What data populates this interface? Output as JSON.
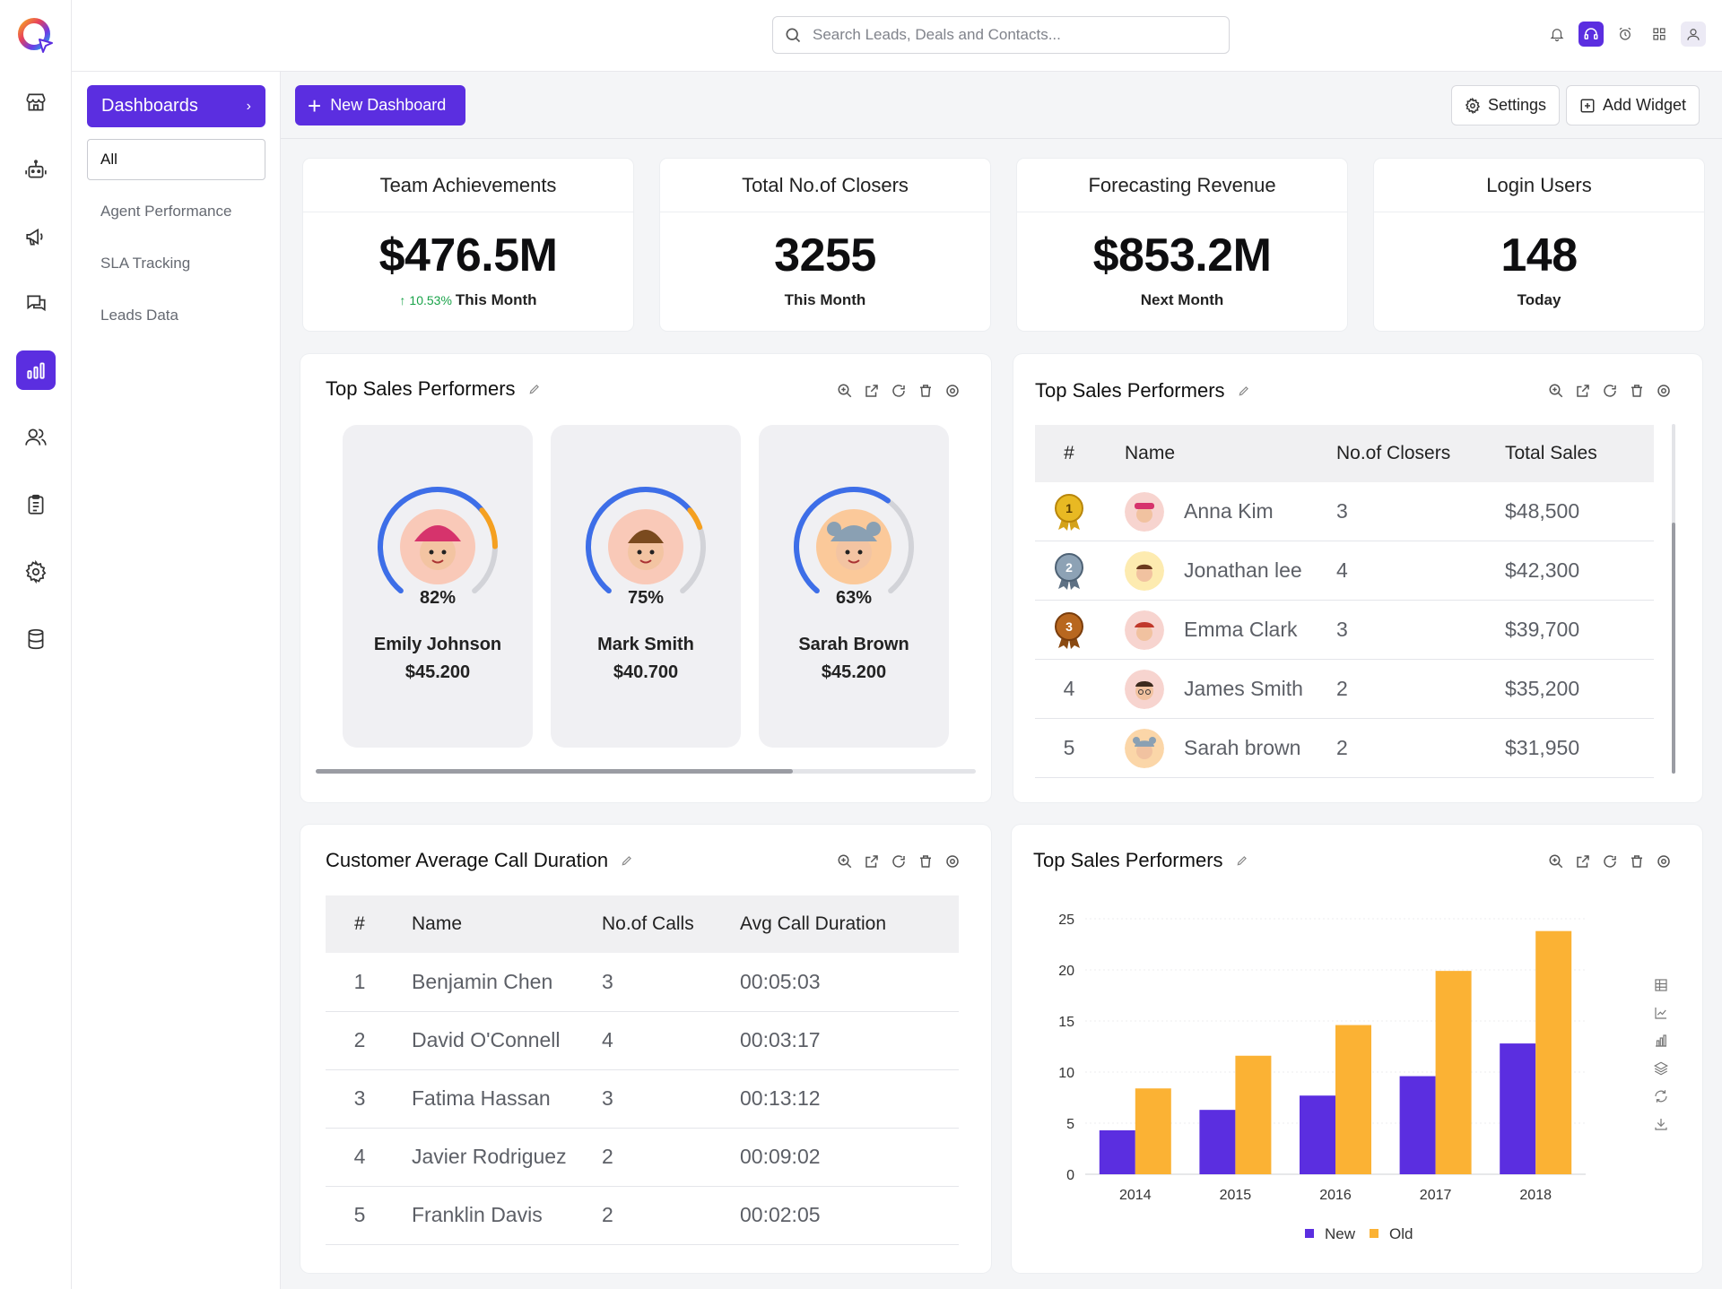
{
  "header": {
    "search_placeholder": "Search Leads, Deals and Contacts..."
  },
  "sidebar": {
    "dashboards_label": "Dashboards",
    "items": [
      "All",
      "Agent Performance",
      "SLA Tracking",
      "Leads Data"
    ]
  },
  "toolbar": {
    "new_dashboard": "New Dashboard",
    "settings": "Settings",
    "add_widget": "Add Widget"
  },
  "kpis": [
    {
      "title": "Team Achievements",
      "value": "$476.5M",
      "change": "10.53%",
      "subtitle": "This Month"
    },
    {
      "title": "Total No.of Closers",
      "value": "3255",
      "subtitle": "This Month"
    },
    {
      "title": "Forecasting Revenue",
      "value": "$853.2M",
      "subtitle": "Next Month"
    },
    {
      "title": "Login Users",
      "value": "148",
      "subtitle": "Today"
    }
  ],
  "performers_widget": {
    "title": "Top Sales Performers",
    "cards": [
      {
        "percent": 82,
        "percent_label": "82%",
        "name": "Emily Johnson",
        "amount": "$45.200"
      },
      {
        "percent": 75,
        "percent_label": "75%",
        "name": "Mark Smith",
        "amount": "$40.700"
      },
      {
        "percent": 63,
        "percent_label": "63%",
        "name": "Sarah Brown",
        "amount": "$45.200"
      }
    ]
  },
  "sales_table_widget": {
    "title": "Top Sales Performers",
    "columns": [
      "#",
      "Name",
      "No.of Closers",
      "Total Sales"
    ],
    "rows": [
      {
        "rank": "1",
        "name": "Anna Kim",
        "closers": "3",
        "sales": "$48,500"
      },
      {
        "rank": "2",
        "name": "Jonathan lee",
        "closers": "4",
        "sales": "$42,300"
      },
      {
        "rank": "3",
        "name": "Emma Clark",
        "closers": "3",
        "sales": "$39,700"
      },
      {
        "rank": "4",
        "name": "James Smith",
        "closers": "2",
        "sales": "$35,200"
      },
      {
        "rank": "5",
        "name": "Sarah brown",
        "closers": "2",
        "sales": "$31,950"
      }
    ]
  },
  "calls_widget": {
    "title": "Customer Average Call Duration",
    "columns": [
      "#",
      "Name",
      "No.of Calls",
      "Avg Call Duration"
    ],
    "rows": [
      {
        "rank": "1",
        "name": "Benjamin Chen",
        "calls": "3",
        "duration": "00:05:03"
      },
      {
        "rank": "2",
        "name": "David O'Connell",
        "calls": "4",
        "duration": "00:03:17"
      },
      {
        "rank": "3",
        "name": "Fatima Hassan",
        "calls": "3",
        "duration": "00:13:12"
      },
      {
        "rank": "4",
        "name": "Javier Rodriguez",
        "calls": "2",
        "duration": "00:09:02"
      },
      {
        "rank": "5",
        "name": "Franklin Davis",
        "calls": "2",
        "duration": "00:02:05"
      }
    ]
  },
  "chart_widget": {
    "title": "Top Sales Performers"
  },
  "chart_data": {
    "type": "bar",
    "categories": [
      "2014",
      "2015",
      "2016",
      "2017",
      "2018"
    ],
    "series": [
      {
        "name": "New",
        "values": [
          4.3,
          6.3,
          7.7,
          9.6,
          12.8
        ],
        "color": "#5b2ee0"
      },
      {
        "name": "Old",
        "values": [
          8.4,
          11.6,
          14.6,
          19.9,
          23.8
        ],
        "color": "#fbb234"
      }
    ],
    "ylim": [
      0,
      25
    ],
    "yticks": [
      0,
      5,
      10,
      15,
      20,
      25
    ],
    "grid": true,
    "legend": "bottom"
  },
  "colors": {
    "accent": "#5b2ee0",
    "up": "#1aa34a",
    "old_bar": "#fbb234"
  }
}
